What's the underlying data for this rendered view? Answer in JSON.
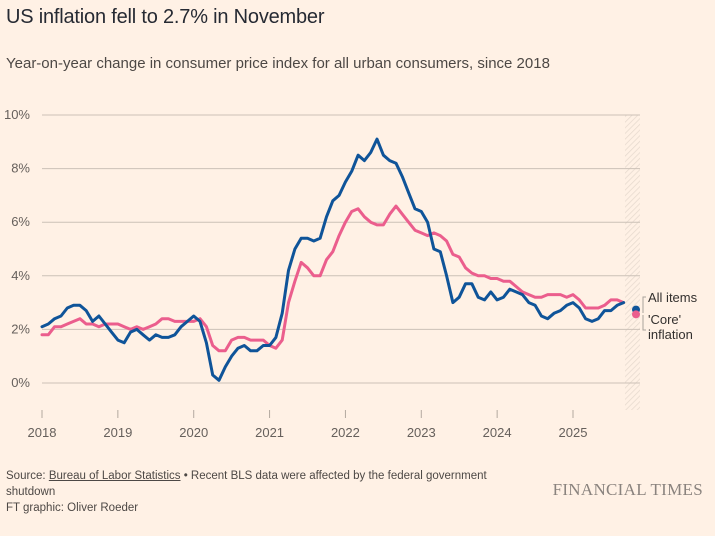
{
  "title": "US inflation fell to 2.7% in November",
  "subtitle": "Year-on-year change in consumer price index for all urban consumers, since 2018",
  "footer": {
    "source_prefix": "Source: ",
    "source_link": "Bureau of Labor Statistics",
    "source_note": " • Recent BLS data were affected by the federal government shutdown",
    "credit": "FT graphic: Oliver Roeder"
  },
  "brand": "FINANCIAL TIMES",
  "colors": {
    "all_items": "#0f5499",
    "core": "#eb5e8d",
    "grid": "#ccc1b7",
    "background": "#fff1e5"
  },
  "chart_data": {
    "type": "line",
    "title": "US inflation fell to 2.7% in November",
    "xlabel": "",
    "ylabel": "",
    "ylim": [
      -1,
      10
    ],
    "xlim": [
      2018.0,
      2025.92
    ],
    "yticks": [
      {
        "value": 0,
        "label": "0%"
      },
      {
        "value": 2,
        "label": "2%"
      },
      {
        "value": 4,
        "label": "4%"
      },
      {
        "value": 6,
        "label": "6%"
      },
      {
        "value": 8,
        "label": "8%"
      },
      {
        "value": 10,
        "label": "10%"
      }
    ],
    "xticks": [
      {
        "value": 2018,
        "label": "2018"
      },
      {
        "value": 2019,
        "label": "2019"
      },
      {
        "value": 2020,
        "label": "2020"
      },
      {
        "value": 2021,
        "label": "2021"
      },
      {
        "value": 2022,
        "label": "2022"
      },
      {
        "value": 2023,
        "label": "2023"
      },
      {
        "value": 2024,
        "label": "2024"
      },
      {
        "value": 2025,
        "label": "2025"
      }
    ],
    "grid": true,
    "shaded_region": {
      "from": 2025.75,
      "to": 2025.92,
      "note": "shutdown-affected period"
    },
    "legend": [
      {
        "name": "All items",
        "color": "#0f5499"
      },
      {
        "name": "'Core' inflation",
        "lines": [
          "'Core'",
          "inflation"
        ],
        "color": "#eb5e8d"
      }
    ],
    "x_start": 2018.0,
    "x_step_months": 1,
    "series": [
      {
        "name": "All items",
        "color": "#0f5499",
        "values": [
          2.1,
          2.2,
          2.4,
          2.5,
          2.8,
          2.9,
          2.9,
          2.7,
          2.3,
          2.5,
          2.2,
          1.9,
          1.6,
          1.5,
          1.9,
          2.0,
          1.8,
          1.6,
          1.8,
          1.7,
          1.7,
          1.8,
          2.1,
          2.3,
          2.5,
          2.3,
          1.5,
          0.3,
          0.1,
          0.6,
          1.0,
          1.3,
          1.4,
          1.2,
          1.2,
          1.4,
          1.4,
          1.7,
          2.6,
          4.2,
          5.0,
          5.4,
          5.4,
          5.3,
          5.4,
          6.2,
          6.8,
          7.0,
          7.5,
          7.9,
          8.5,
          8.3,
          8.6,
          9.1,
          8.5,
          8.3,
          8.2,
          7.7,
          7.1,
          6.5,
          6.4,
          6.0,
          5.0,
          4.9,
          4.0,
          3.0,
          3.2,
          3.7,
          3.7,
          3.2,
          3.1,
          3.4,
          3.1,
          3.2,
          3.5,
          3.4,
          3.3,
          3.0,
          2.9,
          2.5,
          2.4,
          2.6,
          2.7,
          2.9,
          3.0,
          2.8,
          2.4,
          2.3,
          2.4,
          2.7,
          2.7,
          2.9,
          3.0
        ]
      },
      {
        "name": "'Core' inflation",
        "color": "#eb5e8d",
        "values": [
          1.8,
          1.8,
          2.1,
          2.1,
          2.2,
          2.3,
          2.4,
          2.2,
          2.2,
          2.1,
          2.2,
          2.2,
          2.2,
          2.1,
          2.0,
          2.1,
          2.0,
          2.1,
          2.2,
          2.4,
          2.4,
          2.3,
          2.3,
          2.3,
          2.3,
          2.4,
          2.1,
          1.4,
          1.2,
          1.2,
          1.6,
          1.7,
          1.7,
          1.6,
          1.6,
          1.6,
          1.4,
          1.3,
          1.6,
          3.0,
          3.8,
          4.5,
          4.3,
          4.0,
          4.0,
          4.6,
          4.9,
          5.5,
          6.0,
          6.4,
          6.5,
          6.2,
          6.0,
          5.9,
          5.9,
          6.3,
          6.6,
          6.3,
          6.0,
          5.7,
          5.6,
          5.5,
          5.6,
          5.5,
          5.3,
          4.8,
          4.7,
          4.3,
          4.1,
          4.0,
          4.0,
          3.9,
          3.9,
          3.8,
          3.8,
          3.6,
          3.4,
          3.3,
          3.2,
          3.2,
          3.3,
          3.3,
          3.3,
          3.2,
          3.3,
          3.1,
          2.8,
          2.8,
          2.8,
          2.9,
          3.1,
          3.1,
          3.0
        ]
      }
    ],
    "endpoints": [
      {
        "series": "All items",
        "value": 2.7
      },
      {
        "series": "'Core' inflation",
        "value": 2.6
      }
    ]
  }
}
